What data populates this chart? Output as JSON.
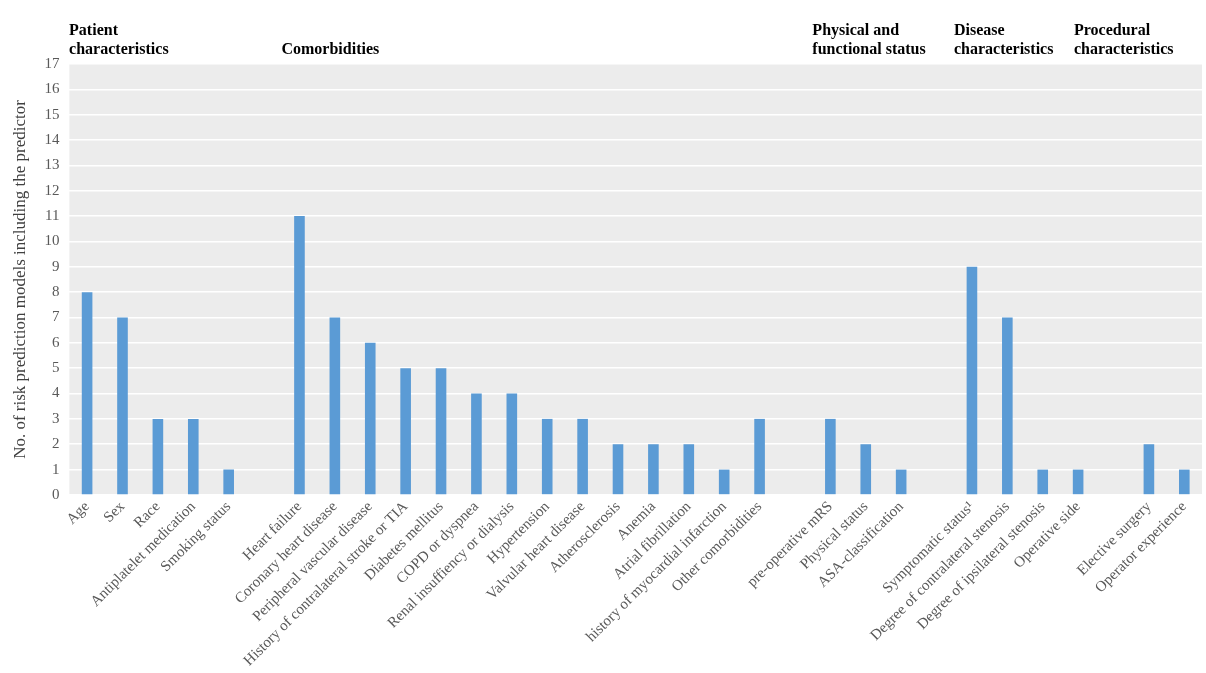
{
  "chart_data": {
    "type": "bar",
    "ylabel": "No. of risk prediction models including the predictor",
    "categories": [
      "Age",
      "Sex",
      "Race",
      "Antiplatelet medication",
      "Smoking status",
      null,
      "Heart failure",
      "Coronary heart disease",
      "Peripheral vascular disease",
      "History of contralateral stroke or TIA",
      "Diabetes mellitus",
      "COPD or dyspnea",
      "Renal insuffiency or dialysis",
      "Hypertension",
      "Valvular heart disease",
      "Atherosclerosis",
      "Anemia",
      "Atrial fibrillation",
      "history of myocardial infarction",
      "Other comorbidities",
      null,
      "pre-operative mRS",
      "Physical status",
      "ASA-classification",
      null,
      "Symptomatic status¹",
      "Degree of contralateral stenosis",
      "Degree of ipsilateral stenosis",
      "Operative side",
      null,
      "Elective surgery",
      "Operator experience"
    ],
    "values": [
      8,
      7,
      3,
      3,
      1,
      null,
      11,
      7,
      6,
      5,
      5,
      4,
      4,
      3,
      3,
      2,
      2,
      2,
      1,
      3,
      null,
      3,
      2,
      1,
      null,
      9,
      7,
      1,
      1,
      null,
      2,
      1
    ],
    "color": "#5b9bd5",
    "ylim": [
      0,
      17
    ],
    "yticks": [
      0,
      1,
      2,
      3,
      4,
      5,
      6,
      7,
      8,
      9,
      10,
      11,
      12,
      13,
      14,
      15,
      16,
      17
    ],
    "grid": "y",
    "legend": false,
    "annotations": [
      "Patient characteristics",
      "Comorbidities",
      "Physical and functional status",
      "Disease characteristics",
      "Procedural characteristics"
    ]
  }
}
